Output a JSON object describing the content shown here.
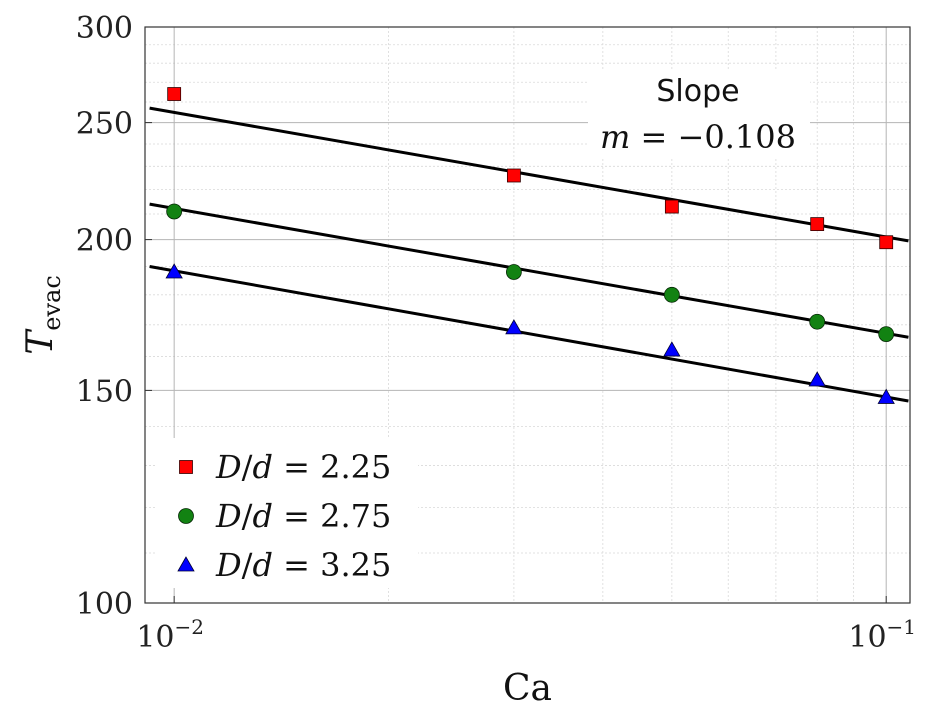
{
  "chart_data": {
    "type": "scatter",
    "x_scale": "log",
    "y_scale": "log",
    "xlabel": "Ca",
    "ylabel": "T",
    "ylabel_subscript": "evac",
    "xlim": [
      0.0091,
      0.108
    ],
    "ylim": [
      100,
      300
    ],
    "x_ticks": [
      {
        "value": 0.01,
        "base": "10",
        "exp": "−2"
      },
      {
        "value": 0.1,
        "base": "10",
        "exp": "−1"
      }
    ],
    "y_ticks": [
      {
        "value": 100,
        "label": "100"
      },
      {
        "value": 150,
        "label": "150"
      },
      {
        "value": 200,
        "label": "200"
      },
      {
        "value": 250,
        "label": "250"
      },
      {
        "value": 300,
        "label": "300"
      }
    ],
    "grid": true,
    "legend_position": "bottom-left",
    "annotation": {
      "line1": "Slope",
      "line2_var": "m",
      "line2_rest": " = −0.108"
    },
    "slope": -0.108,
    "series": [
      {
        "name": "D/d = 2.25",
        "legend_var_D": "D",
        "legend_var_d": "d",
        "legend_value": " = 2.25",
        "marker": "square",
        "color": "#ff0000",
        "x": [
          0.01,
          0.03,
          0.05,
          0.08,
          0.1
        ],
        "y": [
          264,
          226,
          213,
          206,
          199
        ],
        "fit": [
          257,
          199.5
        ]
      },
      {
        "name": "D/d = 2.75",
        "legend_var_D": "D",
        "legend_var_d": "d",
        "legend_value": " = 2.75",
        "marker": "circle",
        "color": "#128212",
        "x": [
          0.01,
          0.03,
          0.05,
          0.08,
          0.1
        ],
        "y": [
          211,
          188,
          180,
          171,
          167
        ],
        "fit": [
          214,
          166
        ]
      },
      {
        "name": "D/d = 3.25",
        "legend_var_D": "D",
        "legend_var_d": "d",
        "legend_value": " = 3.25",
        "marker": "triangle",
        "color": "#0000ff",
        "x": [
          0.01,
          0.03,
          0.05,
          0.08,
          0.1
        ],
        "y": [
          188,
          169,
          162,
          153,
          148
        ],
        "fit": [
          190,
          147
        ]
      }
    ]
  }
}
